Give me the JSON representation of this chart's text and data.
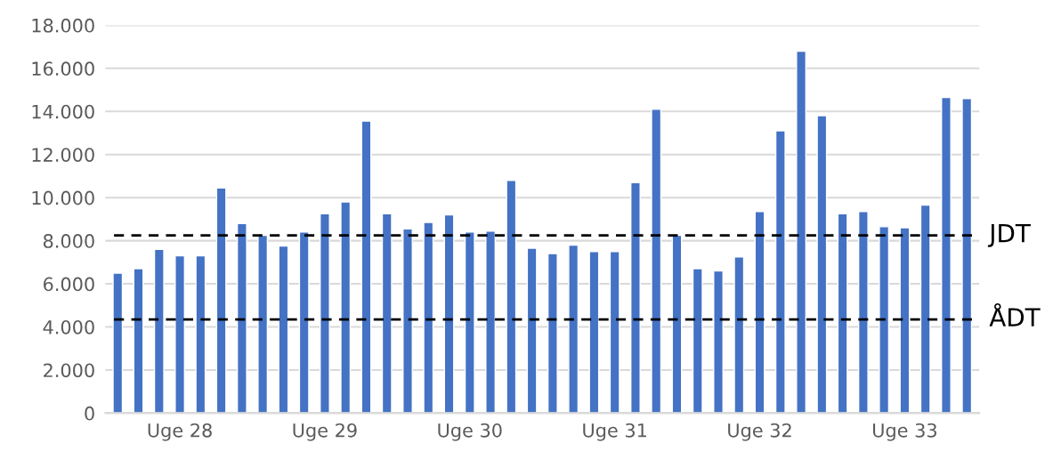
{
  "chart_data": {
    "type": "bar",
    "categories": [
      null,
      null,
      null,
      "Uge 28",
      null,
      null,
      null,
      null,
      null,
      null,
      "Uge 29",
      null,
      null,
      null,
      null,
      null,
      null,
      "Uge 30",
      null,
      null,
      null,
      null,
      null,
      null,
      "Uge 31",
      null,
      null,
      null,
      null,
      null,
      null,
      "Uge 32",
      null,
      null,
      null,
      null,
      null,
      null,
      "Uge 33",
      null,
      null,
      null
    ],
    "values": [
      6500,
      6700,
      7600,
      7300,
      7300,
      10450,
      8800,
      8250,
      7750,
      8400,
      9250,
      9800,
      13550,
      9250,
      8550,
      8850,
      9200,
      8400,
      8450,
      10800,
      7650,
      7400,
      7800,
      7500,
      7500,
      10700,
      14100,
      8250,
      6700,
      6600,
      7250,
      9350,
      13100,
      16800,
      13800,
      9250,
      9350,
      8650,
      8600,
      9650,
      14650,
      14600
    ],
    "color": "#4472c4",
    "ylim": [
      0,
      18000
    ],
    "yticks": [
      0,
      {
        "value": 2000,
        "label": "2.000"
      },
      {
        "value": 4000,
        "label": "4.000"
      },
      {
        "value": 6000,
        "label": "6.000"
      },
      {
        "value": 8000,
        "label": "8.000"
      },
      {
        "value": 10000,
        "label": "10.000"
      },
      {
        "value": 12000,
        "label": "12.000"
      },
      {
        "value": 14000,
        "label": "14.000"
      },
      {
        "value": 16000,
        "label": "16.000"
      },
      {
        "value": 18000,
        "label": "18.000"
      }
    ],
    "grid": "y",
    "ref_lines": [
      {
        "axis": "y",
        "value": 8250,
        "label": "JDT",
        "color": "#000000",
        "line_style": "dashed"
      },
      {
        "axis": "y",
        "value": 4350,
        "label": "ÅDT",
        "color": "#000000",
        "line_style": "dashed"
      }
    ]
  }
}
